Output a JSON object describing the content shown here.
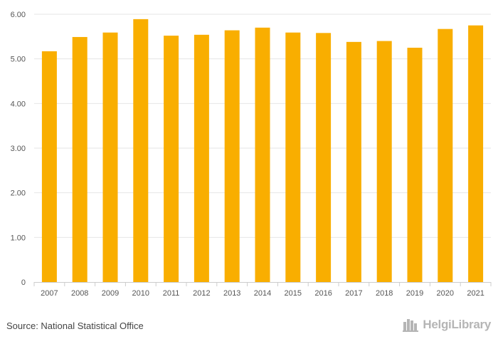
{
  "chart_data": {
    "type": "bar",
    "categories": [
      "2007",
      "2008",
      "2009",
      "2010",
      "2011",
      "2012",
      "2013",
      "2014",
      "2015",
      "2016",
      "2017",
      "2018",
      "2019",
      "2020",
      "2021"
    ],
    "values": [
      5.17,
      5.49,
      5.59,
      5.89,
      5.52,
      5.54,
      5.64,
      5.7,
      5.59,
      5.58,
      5.38,
      5.4,
      5.25,
      5.67,
      5.75
    ],
    "y_ticks": [
      {
        "value": 0,
        "label": "0"
      },
      {
        "value": 1,
        "label": "1.00"
      },
      {
        "value": 2,
        "label": "2.00"
      },
      {
        "value": 3,
        "label": "3.00"
      },
      {
        "value": 4,
        "label": "4.00"
      },
      {
        "value": 5,
        "label": "5.00"
      },
      {
        "value": 6,
        "label": "6.00"
      }
    ],
    "ylim": [
      0,
      6
    ],
    "title": "",
    "xlabel": "",
    "ylabel": "",
    "grid": true,
    "bar_color": "#F9AE00",
    "grid_color": "#e6e6e6",
    "axis_color": "#cccccc"
  },
  "source": "Source: National Statistical Office",
  "brand": {
    "name": "HelgiLibrary",
    "icon": "library-buildings-icon",
    "color": "#b5b5b5"
  }
}
